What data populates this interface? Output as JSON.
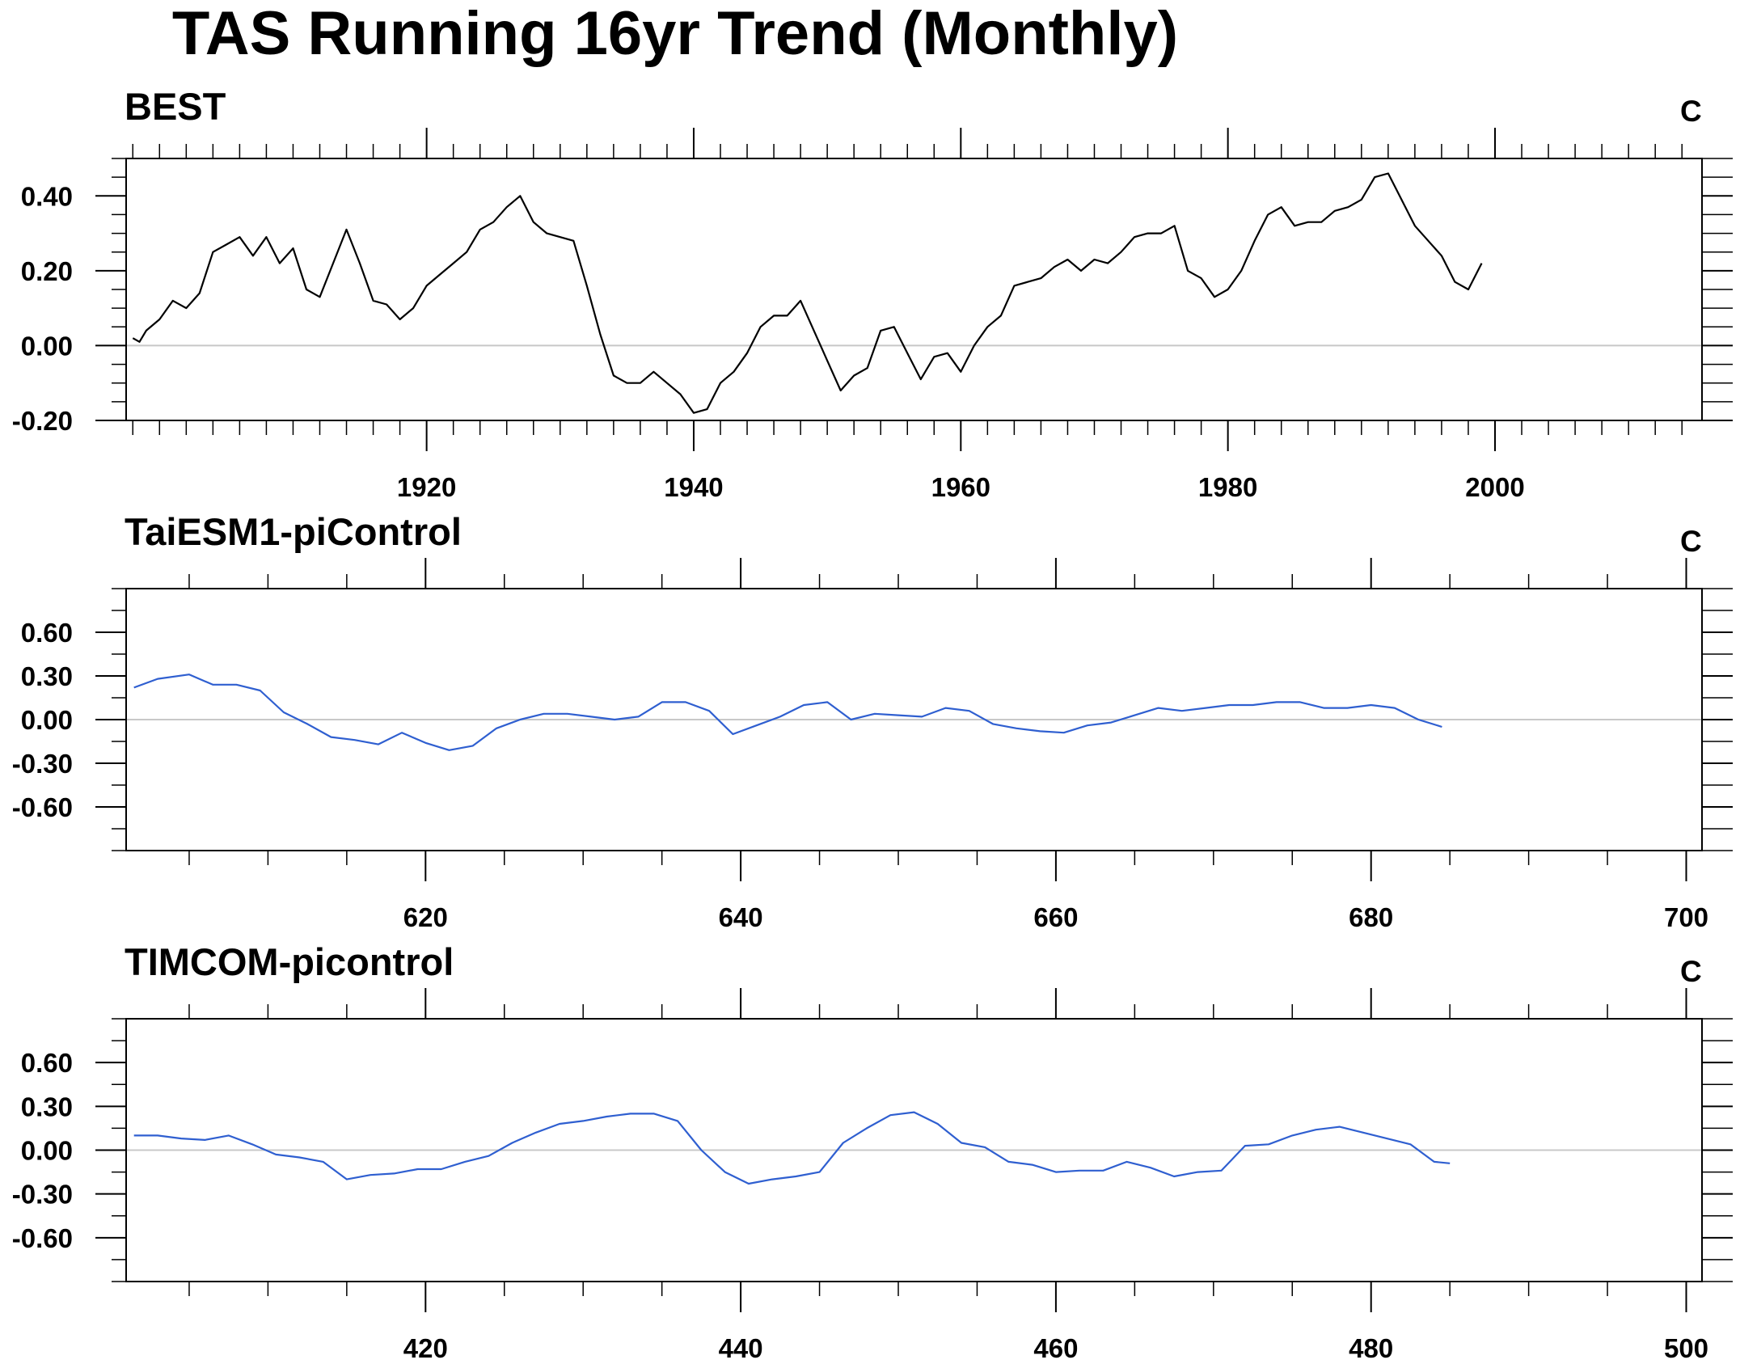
{
  "title": "TAS Running 16yr Trend (Monthly)",
  "colors": {
    "best": "#000000",
    "model": "#2f5fd0",
    "zero_line": "#c8c8c8",
    "axis": "#000000"
  },
  "chart_data": [
    {
      "type": "line",
      "title": "BEST",
      "units": "C",
      "xlim": [
        1897.5,
        2015.5
      ],
      "ylim": [
        -0.2,
        0.5
      ],
      "x_ticks": [
        1920,
        1940,
        1960,
        1980,
        2000
      ],
      "y_ticks": [
        -0.2,
        0.0,
        0.2,
        0.4
      ],
      "y_tick_labels": [
        "-0.20",
        "0.00",
        "0.20",
        "0.40"
      ],
      "reference_line": 0,
      "series": [
        {
          "color": "#000000",
          "x": [
            1898,
            1898.5,
            1899,
            1900,
            1901,
            1902,
            1903,
            1904,
            1905,
            1906,
            1907,
            1908,
            1909,
            1910,
            1911,
            1912,
            1913,
            1914,
            1915,
            1916,
            1917,
            1918,
            1919,
            1920,
            1921,
            1922,
            1923,
            1924,
            1925,
            1926,
            1927,
            1928,
            1929,
            1930,
            1931,
            1932,
            1933,
            1934,
            1935,
            1936,
            1937,
            1938,
            1939,
            1940,
            1941,
            1942,
            1943,
            1944,
            1945,
            1946,
            1947,
            1948,
            1949,
            1950,
            1951,
            1952,
            1953,
            1954,
            1955,
            1956,
            1957,
            1958,
            1959,
            1960,
            1961,
            1962,
            1963,
            1964,
            1965,
            1966,
            1967,
            1968,
            1969,
            1970,
            1971,
            1972,
            1973,
            1974,
            1975,
            1976,
            1977,
            1978,
            1979,
            1980,
            1981,
            1982,
            1983,
            1984,
            1985,
            1986,
            1987,
            1988,
            1989,
            1990,
            1991,
            1992,
            1993,
            1994,
            1995,
            1996,
            1997,
            1998,
            1999
          ],
          "y": [
            0.02,
            0.01,
            0.04,
            0.07,
            0.12,
            0.1,
            0.14,
            0.25,
            0.27,
            0.29,
            0.24,
            0.29,
            0.22,
            0.26,
            0.15,
            0.13,
            0.22,
            0.31,
            0.22,
            0.12,
            0.11,
            0.07,
            0.1,
            0.16,
            0.19,
            0.22,
            0.25,
            0.31,
            0.33,
            0.37,
            0.4,
            0.33,
            0.3,
            0.29,
            0.28,
            0.16,
            0.03,
            -0.08,
            -0.1,
            -0.1,
            -0.07,
            -0.1,
            -0.13,
            -0.18,
            -0.17,
            -0.1,
            -0.07,
            -0.02,
            0.05,
            0.08,
            0.08,
            0.12,
            0.04,
            -0.04,
            -0.12,
            -0.08,
            -0.06,
            0.04,
            0.05,
            -0.02,
            -0.09,
            -0.03,
            -0.02,
            -0.07,
            0.0,
            0.05,
            0.08,
            0.16,
            0.17,
            0.18,
            0.21,
            0.23,
            0.2,
            0.23,
            0.22,
            0.25,
            0.29,
            0.3,
            0.3,
            0.32,
            0.2,
            0.18,
            0.13,
            0.15,
            0.2,
            0.28,
            0.35,
            0.37,
            0.32,
            0.33,
            0.33,
            0.36,
            0.37,
            0.39,
            0.45,
            0.46,
            0.39,
            0.32,
            0.28,
            0.24,
            0.17,
            0.15,
            0.22
          ]
        }
      ]
    },
    {
      "type": "line",
      "title": "TaiESM1-piControl",
      "units": "C",
      "xlim": [
        601,
        701
      ],
      "ylim": [
        -0.9,
        0.9
      ],
      "x_ticks": [
        620,
        640,
        660,
        680,
        700
      ],
      "y_ticks": [
        -0.6,
        -0.3,
        0.0,
        0.3,
        0.6
      ],
      "y_tick_labels": [
        "-0.60",
        "-0.30",
        "0.00",
        "0.30",
        "0.60"
      ],
      "reference_line": 0,
      "series": [
        {
          "color": "#2f5fd0",
          "x": [
            601.5,
            603,
            605,
            606.5,
            608,
            609.5,
            611,
            612.5,
            614,
            615.5,
            617,
            618.5,
            620,
            621.5,
            623,
            624.5,
            626,
            627.5,
            629,
            630.5,
            632,
            633.5,
            635,
            636.5,
            638,
            639.5,
            641,
            642.5,
            644,
            645.5,
            647,
            648.5,
            650,
            651.5,
            653,
            654.5,
            656,
            657.5,
            659,
            660.5,
            662,
            663.5,
            665,
            666.5,
            668,
            669.5,
            671,
            672.5,
            674,
            675.5,
            677,
            678.5,
            680,
            681.5,
            683,
            684.5
          ],
          "y": [
            0.22,
            0.28,
            0.31,
            0.24,
            0.24,
            0.2,
            0.05,
            -0.03,
            -0.12,
            -0.14,
            -0.17,
            -0.09,
            -0.16,
            -0.21,
            -0.18,
            -0.06,
            0.0,
            0.04,
            0.04,
            0.02,
            0.0,
            0.02,
            0.12,
            0.12,
            0.06,
            -0.1,
            -0.04,
            0.02,
            0.1,
            0.12,
            0.0,
            0.04,
            0.03,
            0.02,
            0.08,
            0.06,
            -0.03,
            -0.06,
            -0.08,
            -0.09,
            -0.04,
            -0.02,
            0.03,
            0.08,
            0.06,
            0.08,
            0.1,
            0.1,
            0.12,
            0.12,
            0.08,
            0.08,
            0.1,
            0.08,
            0.0,
            -0.05
          ]
        }
      ]
    },
    {
      "type": "line",
      "title": "TIMCOM-picontrol",
      "units": "C",
      "xlim": [
        401,
        501
      ],
      "ylim": [
        -0.9,
        0.9
      ],
      "x_ticks": [
        420,
        440,
        460,
        480,
        500
      ],
      "y_ticks": [
        -0.6,
        -0.3,
        0.0,
        0.3,
        0.6
      ],
      "y_tick_labels": [
        "-0.60",
        "-0.30",
        "0.00",
        "0.30",
        "0.60"
      ],
      "reference_line": 0,
      "series": [
        {
          "color": "#2f5fd0",
          "x": [
            401.5,
            403,
            404.5,
            406,
            407.5,
            409,
            410.5,
            412,
            413.5,
            415,
            416.5,
            418,
            419.5,
            421,
            422.5,
            424,
            425.5,
            427,
            428.5,
            430,
            431.5,
            433,
            434.5,
            436,
            437.5,
            439,
            440.5,
            442,
            443.5,
            445,
            446.5,
            448,
            449.5,
            451,
            452.5,
            454,
            455.5,
            457,
            458.5,
            460,
            461.5,
            463,
            464.5,
            466,
            467.5,
            469,
            470.5,
            472,
            473.5,
            475,
            476.5,
            478,
            479.5,
            481,
            482.5,
            484,
            485
          ],
          "y": [
            0.1,
            0.1,
            0.08,
            0.07,
            0.1,
            0.04,
            -0.03,
            -0.05,
            -0.08,
            -0.2,
            -0.17,
            -0.16,
            -0.13,
            -0.13,
            -0.08,
            -0.04,
            0.05,
            0.12,
            0.18,
            0.2,
            0.23,
            0.25,
            0.25,
            0.2,
            0.0,
            -0.15,
            -0.23,
            -0.2,
            -0.18,
            -0.15,
            0.05,
            0.15,
            0.24,
            0.26,
            0.18,
            0.05,
            0.02,
            -0.08,
            -0.1,
            -0.15,
            -0.14,
            -0.14,
            -0.08,
            -0.12,
            -0.18,
            -0.15,
            -0.14,
            0.03,
            0.04,
            0.1,
            0.14,
            0.16,
            0.12,
            0.08,
            0.04,
            -0.08,
            -0.09
          ]
        }
      ]
    }
  ]
}
